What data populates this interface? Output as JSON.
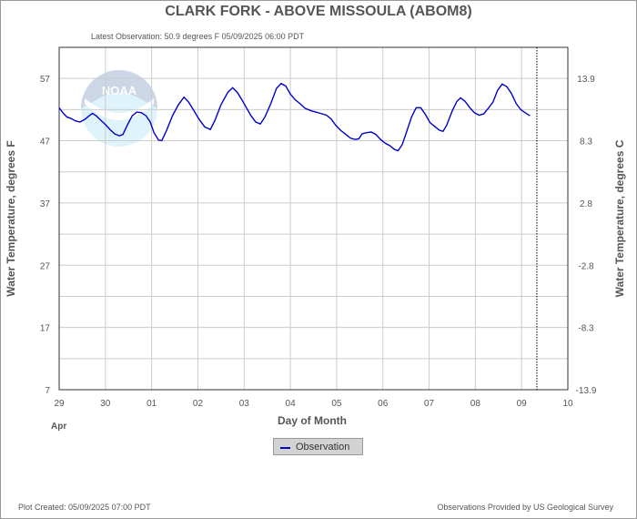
{
  "title": "CLARK FORK - ABOVE MISSOULA  (ABOM8)",
  "subtitle": "Latest Observation: 50.9 degrees F 05/09/2025 06:00 PDT",
  "footer_left": "Plot Created: 05/09/2025 07:00 PDT",
  "footer_right": "Observations Provided by US Geological Survey",
  "watermark_text": "NOAA",
  "legend_label": "Observation",
  "colors": {
    "series": "#0000cc",
    "grid": "#cccccc",
    "text": "#555555",
    "watermark": "#87ceeb"
  },
  "chart_data": {
    "type": "line",
    "xlabel": "Day of Month",
    "xlabel_sub": "Apr",
    "ylabel_left": "Water Temperature, degrees F",
    "ylabel_right": "Water Temperature, degrees C",
    "xlim": [
      0,
      11
    ],
    "x_tick_labels": [
      "29",
      "30",
      "01",
      "02",
      "03",
      "04",
      "05",
      "06",
      "07",
      "08",
      "09",
      "10"
    ],
    "ylim": [
      7,
      62
    ],
    "y_ticks": [
      7,
      17,
      27,
      37,
      47,
      57
    ],
    "y_tick_labels": [
      "7",
      "17",
      "27",
      "37",
      "47",
      "57"
    ],
    "y2_ticks": [
      7,
      17,
      27,
      37,
      47,
      57
    ],
    "y2_tick_labels": [
      "-13.9",
      "-8.3",
      "-2.8",
      "2.8",
      "8.3",
      "13.9"
    ],
    "grid": true,
    "latest_marker_x": 10.33,
    "series": [
      {
        "name": "Observation",
        "points": [
          [
            0.0,
            52.3
          ],
          [
            0.08,
            51.5
          ],
          [
            0.17,
            50.8
          ],
          [
            0.25,
            50.6
          ],
          [
            0.35,
            50.2
          ],
          [
            0.45,
            50.0
          ],
          [
            0.55,
            50.4
          ],
          [
            0.65,
            51.0
          ],
          [
            0.72,
            51.4
          ],
          [
            0.8,
            51.0
          ],
          [
            0.9,
            50.3
          ],
          [
            1.0,
            49.6
          ],
          [
            1.1,
            48.8
          ],
          [
            1.2,
            48.1
          ],
          [
            1.3,
            47.8
          ],
          [
            1.38,
            48.0
          ],
          [
            1.48,
            49.6
          ],
          [
            1.58,
            51.0
          ],
          [
            1.68,
            51.6
          ],
          [
            1.78,
            51.5
          ],
          [
            1.88,
            51.0
          ],
          [
            1.97,
            50.0
          ],
          [
            2.05,
            48.3
          ],
          [
            2.15,
            47.1
          ],
          [
            2.22,
            47.0
          ],
          [
            2.32,
            48.6
          ],
          [
            2.45,
            51.0
          ],
          [
            2.58,
            52.8
          ],
          [
            2.7,
            54.0
          ],
          [
            2.8,
            53.2
          ],
          [
            2.9,
            52.0
          ],
          [
            3.02,
            50.5
          ],
          [
            3.15,
            49.2
          ],
          [
            3.27,
            48.8
          ],
          [
            3.37,
            50.3
          ],
          [
            3.5,
            52.8
          ],
          [
            3.65,
            54.8
          ],
          [
            3.75,
            55.5
          ],
          [
            3.85,
            54.8
          ],
          [
            3.95,
            53.6
          ],
          [
            4.05,
            52.3
          ],
          [
            4.15,
            51.0
          ],
          [
            4.25,
            50.0
          ],
          [
            4.35,
            49.7
          ],
          [
            4.45,
            50.8
          ],
          [
            4.58,
            53.0
          ],
          [
            4.7,
            55.4
          ],
          [
            4.8,
            56.2
          ],
          [
            4.9,
            55.8
          ],
          [
            5.0,
            54.5
          ],
          [
            5.1,
            53.6
          ],
          [
            5.2,
            53.0
          ],
          [
            5.32,
            52.2
          ],
          [
            5.45,
            51.8
          ],
          [
            5.55,
            51.6
          ],
          [
            5.65,
            51.4
          ],
          [
            5.78,
            51.1
          ],
          [
            5.88,
            50.5
          ],
          [
            5.98,
            49.5
          ],
          [
            6.08,
            48.7
          ],
          [
            6.2,
            48.0
          ],
          [
            6.3,
            47.4
          ],
          [
            6.4,
            47.2
          ],
          [
            6.48,
            47.3
          ],
          [
            6.55,
            48.1
          ],
          [
            6.65,
            48.3
          ],
          [
            6.75,
            48.4
          ],
          [
            6.85,
            48.0
          ],
          [
            6.95,
            47.2
          ],
          [
            7.05,
            46.6
          ],
          [
            7.15,
            46.2
          ],
          [
            7.25,
            45.6
          ],
          [
            7.33,
            45.4
          ],
          [
            7.42,
            46.4
          ],
          [
            7.52,
            48.6
          ],
          [
            7.62,
            50.8
          ],
          [
            7.72,
            52.3
          ],
          [
            7.82,
            52.3
          ],
          [
            7.92,
            51.2
          ],
          [
            8.02,
            49.9
          ],
          [
            8.12,
            49.3
          ],
          [
            8.22,
            48.7
          ],
          [
            8.3,
            48.5
          ],
          [
            8.38,
            49.5
          ],
          [
            8.5,
            51.8
          ],
          [
            8.6,
            53.3
          ],
          [
            8.68,
            53.9
          ],
          [
            8.78,
            53.3
          ],
          [
            8.88,
            52.3
          ],
          [
            8.98,
            51.5
          ],
          [
            9.08,
            51.1
          ],
          [
            9.18,
            51.3
          ],
          [
            9.28,
            52.2
          ],
          [
            9.38,
            53.2
          ],
          [
            9.48,
            55.1
          ],
          [
            9.58,
            56.1
          ],
          [
            9.68,
            55.7
          ],
          [
            9.78,
            54.6
          ],
          [
            9.88,
            53.0
          ],
          [
            9.98,
            52.0
          ],
          [
            10.08,
            51.5
          ],
          [
            10.18,
            51.0
          ]
        ]
      }
    ]
  }
}
